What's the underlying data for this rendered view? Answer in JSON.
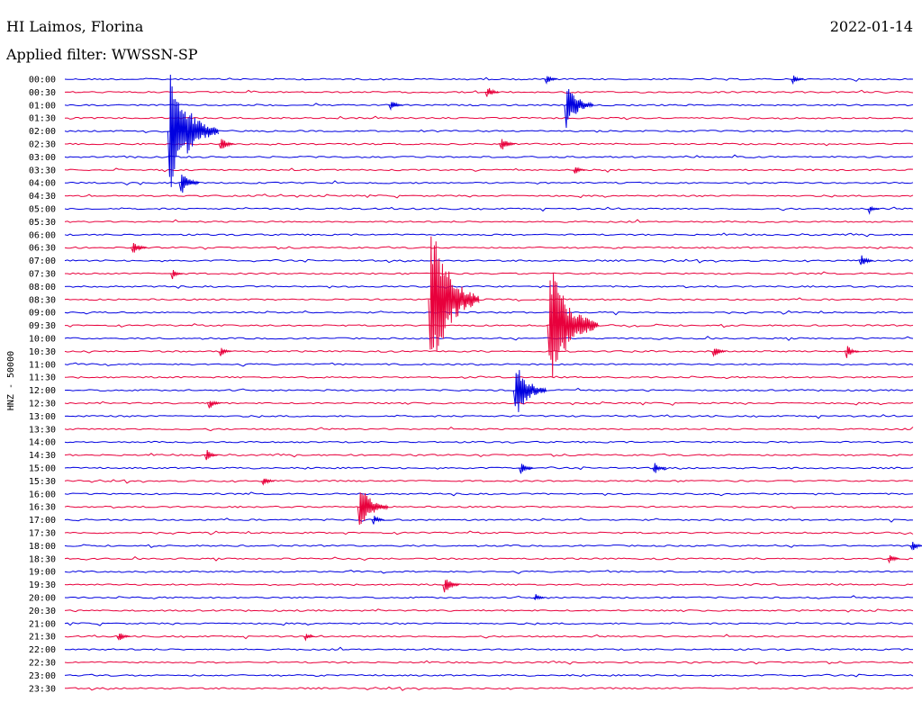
{
  "header": {
    "station": "HI Laimos, Florina",
    "date": "2022-01-14",
    "filter": "Applied filter: WWSSN-SP"
  },
  "chart_data": {
    "type": "line",
    "ylabel": "HNZ - 50000",
    "line_colors": [
      "#0000e0",
      "#e8003c"
    ],
    "rows": [
      "00:00",
      "00:30",
      "01:00",
      "01:30",
      "02:00",
      "02:30",
      "03:00",
      "03:30",
      "04:00",
      "04:30",
      "05:00",
      "05:30",
      "06:00",
      "06:30",
      "07:00",
      "07:30",
      "08:00",
      "08:30",
      "09:00",
      "09:30",
      "10:00",
      "10:30",
      "11:00",
      "11:30",
      "12:00",
      "12:30",
      "13:00",
      "13:30",
      "14:00",
      "14:30",
      "15:00",
      "15:30",
      "16:00",
      "16:30",
      "17:00",
      "17:30",
      "18:00",
      "18:30",
      "19:00",
      "19:30",
      "20:00",
      "20:30",
      "21:00",
      "21:30",
      "22:00",
      "22:30",
      "23:00",
      "23:30"
    ],
    "minutes_per_row": 30,
    "events": [
      {
        "row": "00:00",
        "minute": 17.0,
        "amp": 6
      },
      {
        "row": "00:00",
        "minute": 25.7,
        "amp": 6
      },
      {
        "row": "00:30",
        "minute": 14.9,
        "amp": 8
      },
      {
        "row": "01:00",
        "minute": 11.5,
        "amp": 8
      },
      {
        "row": "01:00",
        "minute": 17.7,
        "amp": 28
      },
      {
        "row": "02:00",
        "minute": 3.7,
        "amp": 72
      },
      {
        "row": "02:30",
        "minute": 5.5,
        "amp": 10
      },
      {
        "row": "02:30",
        "minute": 15.4,
        "amp": 10
      },
      {
        "row": "03:30",
        "minute": 18.0,
        "amp": 6
      },
      {
        "row": "04:00",
        "minute": 4.1,
        "amp": 16
      },
      {
        "row": "05:00",
        "minute": 28.4,
        "amp": 5
      },
      {
        "row": "06:30",
        "minute": 2.4,
        "amp": 10
      },
      {
        "row": "07:00",
        "minute": 28.1,
        "amp": 8
      },
      {
        "row": "07:30",
        "minute": 3.8,
        "amp": 6
      },
      {
        "row": "08:30",
        "minute": 12.9,
        "amp": 96
      },
      {
        "row": "09:30",
        "minute": 17.1,
        "amp": 78
      },
      {
        "row": "10:30",
        "minute": 5.5,
        "amp": 6
      },
      {
        "row": "10:30",
        "minute": 22.9,
        "amp": 8
      },
      {
        "row": "10:30",
        "minute": 27.6,
        "amp": 8
      },
      {
        "row": "12:00",
        "minute": 15.9,
        "amp": 34
      },
      {
        "row": "12:30",
        "minute": 5.1,
        "amp": 7
      },
      {
        "row": "14:30",
        "minute": 5.0,
        "amp": 7
      },
      {
        "row": "15:00",
        "minute": 16.1,
        "amp": 8
      },
      {
        "row": "15:00",
        "minute": 20.8,
        "amp": 8
      },
      {
        "row": "15:30",
        "minute": 7.0,
        "amp": 7
      },
      {
        "row": "16:30",
        "minute": 10.4,
        "amp": 30
      },
      {
        "row": "17:00",
        "minute": 10.9,
        "amp": 6
      },
      {
        "row": "18:00",
        "minute": 29.9,
        "amp": 7
      },
      {
        "row": "18:30",
        "minute": 29.1,
        "amp": 6
      },
      {
        "row": "19:30",
        "minute": 13.4,
        "amp": 12
      },
      {
        "row": "20:00",
        "minute": 16.6,
        "amp": 5
      },
      {
        "row": "21:30",
        "minute": 1.9,
        "amp": 7
      },
      {
        "row": "21:30",
        "minute": 8.5,
        "amp": 4
      }
    ]
  }
}
